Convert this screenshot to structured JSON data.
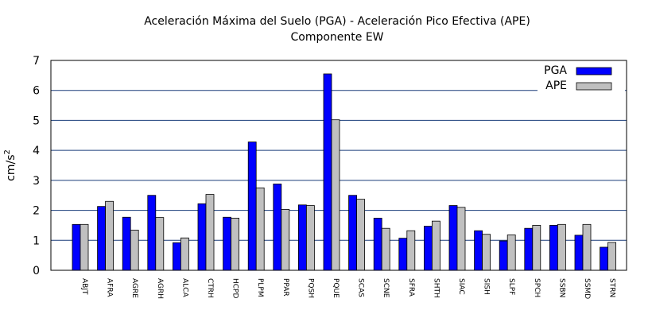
{
  "chart_data": {
    "type": "bar",
    "title": "Aceleración Máxima del Suelo (PGA) -  Aceleración Pico Efectiva (APE)",
    "subtitle": "Componente EW",
    "ylabel": "cm/s",
    "ylabel_superscript": "2",
    "xlabel": "",
    "ylim": [
      0,
      7
    ],
    "yticks": [
      "0",
      "1",
      "2",
      "3",
      "4",
      "5",
      "6",
      "7"
    ],
    "grid": true,
    "legend_position": "top-right",
    "categories": [
      "ABJT",
      "AFRA",
      "AGRE",
      "AGRH",
      "ALCA",
      "CTRH",
      "HCPD",
      "PLPM",
      "PPAR",
      "PQSH",
      "PQUE",
      "SCAS",
      "SCNE",
      "SFRA",
      "SHTH",
      "SIAC",
      "SISH",
      "SLPF",
      "SPCH",
      "SSBN",
      "SSMD",
      "STRN"
    ],
    "series": [
      {
        "name": "PGA",
        "color": "#0000ff",
        "values": [
          1.53,
          2.13,
          1.77,
          2.5,
          0.92,
          2.22,
          1.77,
          4.28,
          2.88,
          2.18,
          6.55,
          2.5,
          1.74,
          1.07,
          1.47,
          2.16,
          1.32,
          0.98,
          1.4,
          1.5,
          1.17,
          0.77
        ]
      },
      {
        "name": "APE",
        "color": "#c0c0c0",
        "values": [
          1.53,
          2.3,
          1.34,
          1.76,
          1.08,
          2.53,
          1.74,
          2.75,
          2.03,
          2.16,
          5.02,
          2.37,
          1.4,
          1.32,
          1.64,
          2.1,
          1.2,
          1.18,
          1.5,
          1.53,
          1.53,
          0.93
        ]
      }
    ]
  }
}
